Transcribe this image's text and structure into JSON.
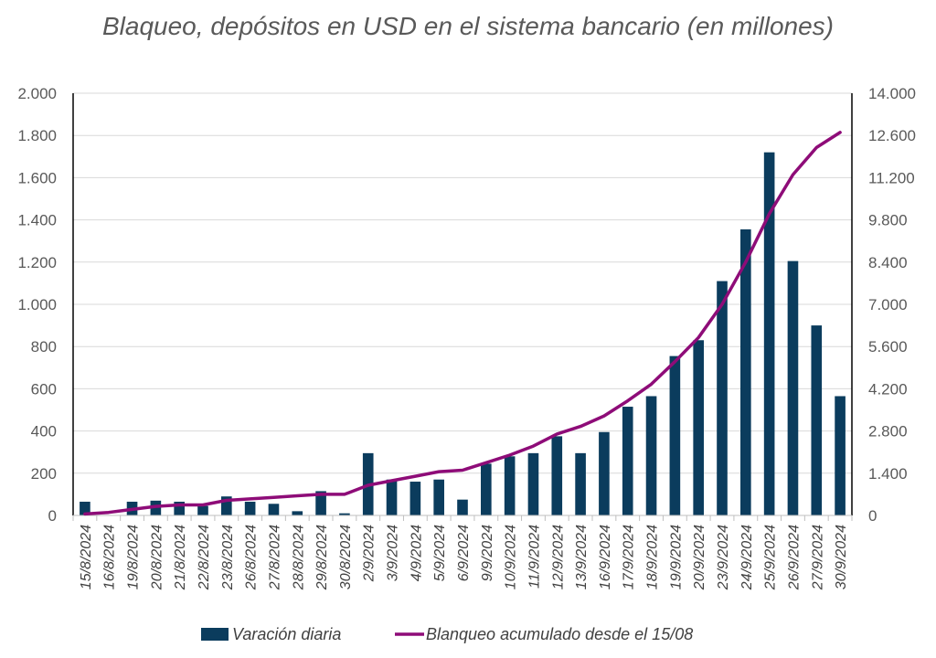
{
  "chart_data": {
    "type": "bar+line",
    "title": "Blaqueo, depósitos en USD en el sistema bancario (en millones)",
    "categories": [
      "15/8/2024",
      "16/8/2024",
      "19/8/2024",
      "20/8/2024",
      "21/8/2024",
      "22/8/2024",
      "23/8/2024",
      "26/8/2024",
      "27/8/2024",
      "28/8/2024",
      "29/8/2024",
      "30/8/2024",
      "2/9/2024",
      "3/9/2024",
      "4/9/2024",
      "5/9/2024",
      "6/9/2024",
      "9/9/2024",
      "10/9/2024",
      "11/9/2024",
      "12/9/2024",
      "13/9/2024",
      "16/9/2024",
      "17/9/2024",
      "18/9/2024",
      "19/9/2024",
      "20/9/2024",
      "23/9/2024",
      "24/9/2024",
      "25/9/2024",
      "26/9/2024",
      "27/9/2024",
      "30/9/2024"
    ],
    "series": [
      {
        "name": "Varación diaria",
        "type": "bar",
        "axis": "left",
        "color": "#0b3c5d",
        "values": [
          65,
          0,
          65,
          70,
          65,
          45,
          90,
          65,
          55,
          20,
          115,
          10,
          295,
          170,
          160,
          170,
          75,
          245,
          280,
          295,
          375,
          295,
          395,
          515,
          565,
          755,
          830,
          1110,
          1355,
          1720,
          1205,
          900,
          565
        ]
      },
      {
        "name": "Blanqueo acumulado desde el 15/08",
        "type": "line",
        "axis": "right",
        "color": "#8e0c78",
        "values": [
          50,
          100,
          200,
          300,
          350,
          350,
          500,
          550,
          600,
          650,
          700,
          700,
          1000,
          1150,
          1300,
          1450,
          1500,
          1750,
          2000,
          2300,
          2700,
          2950,
          3300,
          3800,
          4350,
          5100,
          5900,
          7000,
          8400,
          10000,
          11300,
          12200,
          12700
        ]
      }
    ],
    "y_left": {
      "ylim": [
        0,
        2000
      ],
      "ticks": [
        0,
        200,
        400,
        600,
        800,
        1000,
        1200,
        1400,
        1600,
        1800,
        2000
      ],
      "tick_labels": [
        "0",
        "200",
        "400",
        "600",
        "800",
        "1.000",
        "1.200",
        "1.400",
        "1.600",
        "1.800",
        "2.000"
      ]
    },
    "y_right": {
      "ylim": [
        0,
        14000
      ],
      "ticks": [
        0,
        1400,
        2800,
        4200,
        5600,
        7000,
        8400,
        9800,
        11200,
        12600,
        14000
      ],
      "tick_labels": [
        "0",
        "1.400",
        "2.800",
        "4.200",
        "5.600",
        "7.000",
        "8.400",
        "9.800",
        "11.200",
        "12.600",
        "14.000"
      ]
    },
    "grid": true,
    "legend_position": "bottom"
  }
}
